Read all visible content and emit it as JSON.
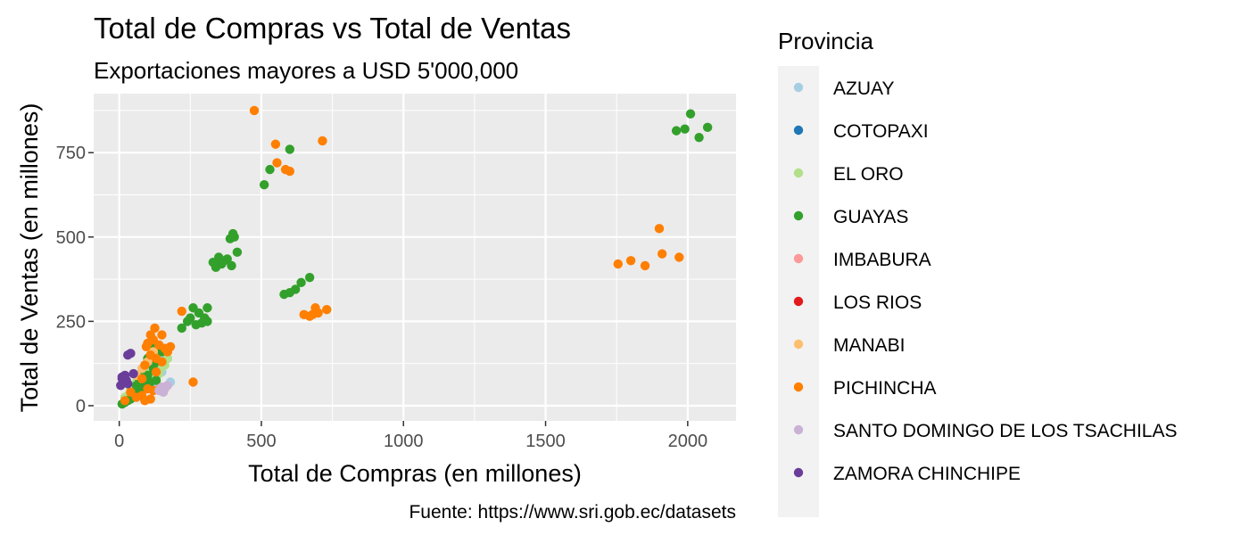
{
  "chart_data": {
    "type": "scatter",
    "title": "Total de Compras vs Total de Ventas",
    "subtitle": "Exportaciones mayores a USD 5'000,000",
    "xlabel": "Total de Compras (en millones)",
    "ylabel": "Total de Ventas (en millones)",
    "caption": "Fuente: https://www.sri.gob.ec/datasets",
    "xlim": [
      -90,
      2170
    ],
    "ylim": [
      -45,
      925
    ],
    "x_ticks": [
      0,
      500,
      1000,
      1500,
      2000
    ],
    "y_ticks": [
      0,
      250,
      500,
      750
    ],
    "grid": true,
    "legend": {
      "title": "Provincia",
      "position": "right"
    },
    "series": [
      {
        "name": "AZUAY",
        "color": "#A6CEE3",
        "points": [
          [
            180,
            70
          ],
          [
            150,
            100
          ],
          [
            160,
            150
          ],
          [
            140,
            130
          ],
          [
            120,
            110
          ],
          [
            110,
            90
          ],
          [
            130,
            60
          ],
          [
            170,
            140
          ]
        ]
      },
      {
        "name": "COTOPAXI",
        "color": "#1F78B4",
        "points": [
          [
            60,
            50
          ]
        ]
      },
      {
        "name": "EL ORO",
        "color": "#B2DF8A",
        "points": [
          [
            100,
            140
          ],
          [
            170,
            140
          ],
          [
            150,
            115
          ],
          [
            110,
            90
          ],
          [
            130,
            110
          ],
          [
            60,
            70
          ],
          [
            80,
            60
          ],
          [
            40,
            50
          ],
          [
            90,
            100
          ],
          [
            140,
            95
          ],
          [
            30,
            30
          ],
          [
            120,
            80
          ],
          [
            50,
            40
          ],
          [
            160,
            120
          ],
          [
            70,
            90
          ],
          [
            20,
            25
          ]
        ]
      },
      {
        "name": "GUAYAS",
        "color": "#33A02C",
        "points": [
          [
            2010,
            865
          ],
          [
            2070,
            825
          ],
          [
            1990,
            820
          ],
          [
            1960,
            815
          ],
          [
            2040,
            795
          ],
          [
            600,
            760
          ],
          [
            530,
            700
          ],
          [
            510,
            655
          ],
          [
            400,
            510
          ],
          [
            390,
            495
          ],
          [
            405,
            500
          ],
          [
            415,
            455
          ],
          [
            330,
            425
          ],
          [
            350,
            440
          ],
          [
            360,
            420
          ],
          [
            370,
            430
          ],
          [
            395,
            415
          ],
          [
            380,
            435
          ],
          [
            340,
            410
          ],
          [
            670,
            380
          ],
          [
            640,
            365
          ],
          [
            620,
            345
          ],
          [
            600,
            335
          ],
          [
            580,
            330
          ],
          [
            260,
            290
          ],
          [
            310,
            290
          ],
          [
            300,
            260
          ],
          [
            280,
            275
          ],
          [
            240,
            250
          ],
          [
            220,
            230
          ],
          [
            290,
            245
          ],
          [
            310,
            250
          ],
          [
            270,
            240
          ],
          [
            250,
            260
          ],
          [
            120,
            180
          ],
          [
            140,
            170
          ],
          [
            110,
            150
          ],
          [
            100,
            140
          ],
          [
            90,
            120
          ],
          [
            130,
            130
          ],
          [
            80,
            100
          ],
          [
            70,
            80
          ],
          [
            60,
            60
          ],
          [
            50,
            30
          ],
          [
            40,
            20
          ],
          [
            30,
            15
          ],
          [
            20,
            10
          ],
          [
            10,
            5
          ],
          [
            100,
            90
          ],
          [
            110,
            70
          ],
          [
            150,
            160
          ],
          [
            120,
            110
          ],
          [
            90,
            60
          ],
          [
            60,
            40
          ],
          [
            130,
            75
          ],
          [
            80,
            50
          ]
        ]
      },
      {
        "name": "IMBABURA",
        "color": "#FB9A99",
        "points": [
          [
            140,
            50
          ],
          [
            150,
            55
          ]
        ]
      },
      {
        "name": "LOS RIOS",
        "color": "#E31A1C",
        "points": []
      },
      {
        "name": "MANABI",
        "color": "#FDBF6F",
        "points": [
          [
            120,
            160
          ],
          [
            100,
            130
          ],
          [
            80,
            110
          ],
          [
            60,
            90
          ]
        ]
      },
      {
        "name": "PICHINCHA",
        "color": "#FF7F00",
        "points": [
          [
            475,
            875
          ],
          [
            715,
            785
          ],
          [
            550,
            775
          ],
          [
            555,
            720
          ],
          [
            585,
            700
          ],
          [
            600,
            695
          ],
          [
            1900,
            525
          ],
          [
            1910,
            450
          ],
          [
            1970,
            440
          ],
          [
            1800,
            430
          ],
          [
            1755,
            420
          ],
          [
            1850,
            415
          ],
          [
            690,
            290
          ],
          [
            730,
            285
          ],
          [
            700,
            275
          ],
          [
            680,
            270
          ],
          [
            670,
            265
          ],
          [
            650,
            270
          ],
          [
            220,
            280
          ],
          [
            125,
            230
          ],
          [
            110,
            210
          ],
          [
            150,
            210
          ],
          [
            120,
            195
          ],
          [
            100,
            185
          ],
          [
            140,
            180
          ],
          [
            180,
            175
          ],
          [
            95,
            175
          ],
          [
            110,
            150
          ],
          [
            130,
            140
          ],
          [
            90,
            120
          ],
          [
            150,
            130
          ],
          [
            170,
            160
          ],
          [
            260,
            70
          ],
          [
            100,
            50
          ],
          [
            120,
            45
          ],
          [
            80,
            30
          ],
          [
            60,
            25
          ],
          [
            110,
            20
          ],
          [
            90,
            15
          ],
          [
            20,
            15
          ],
          [
            40,
            40
          ],
          [
            130,
            100
          ],
          [
            160,
            170
          ],
          [
            80,
            80
          ]
        ]
      },
      {
        "name": "SANTO DOMINGO DE LOS TSACHILAS",
        "color": "#CAB2D6",
        "points": [
          [
            150,
            55
          ],
          [
            160,
            50
          ],
          [
            140,
            45
          ],
          [
            155,
            40
          ],
          [
            170,
            60
          ]
        ]
      },
      {
        "name": "ZAMORA CHINCHIPE",
        "color": "#6A3D9A",
        "points": [
          [
            40,
            155
          ],
          [
            30,
            150
          ],
          [
            50,
            95
          ],
          [
            20,
            90
          ],
          [
            10,
            85
          ],
          [
            15,
            70
          ],
          [
            30,
            65
          ],
          [
            5,
            60
          ],
          [
            25,
            75
          ],
          [
            10,
            80
          ]
        ]
      }
    ]
  }
}
